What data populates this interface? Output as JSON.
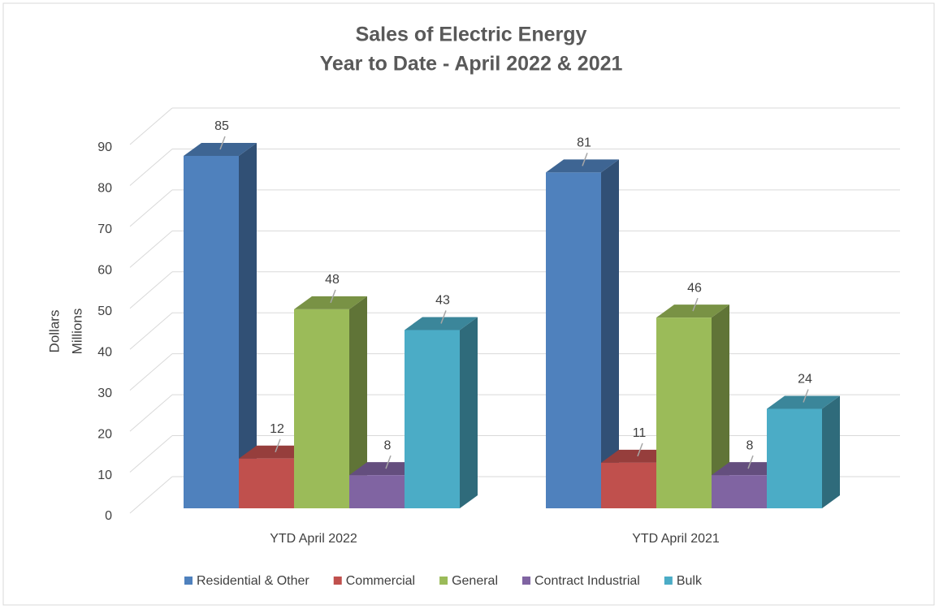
{
  "chart_data": {
    "type": "bar3d",
    "title": "Sales of Electric Energy",
    "subtitle": "Year to Date - April 2022 & 2021",
    "ylabel": [
      "Dollars",
      "Millions"
    ],
    "categories": [
      "YTD April 2022",
      "YTD April 2021"
    ],
    "series": [
      {
        "name": "Residential & Other",
        "color": "#4f81bd",
        "values": [
          85,
          81
        ]
      },
      {
        "name": "Commercial",
        "color": "#c0504d",
        "values": [
          12,
          11
        ]
      },
      {
        "name": "General",
        "color": "#9bbb59",
        "values": [
          48,
          46
        ]
      },
      {
        "name": "Contract Industrial",
        "color": "#8064a2",
        "values": [
          8,
          8
        ]
      },
      {
        "name": "Bulk",
        "color": "#4bacc6",
        "values": [
          43,
          24
        ]
      }
    ],
    "ylim": [
      0,
      90
    ],
    "yticks": [
      0,
      10,
      20,
      30,
      40,
      50,
      60,
      70,
      80,
      90
    ],
    "grid": true,
    "legend": "bottom"
  }
}
